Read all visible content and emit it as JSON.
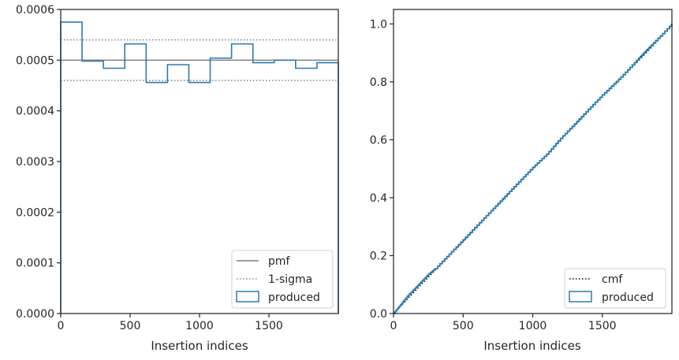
{
  "colors": {
    "produced": "#2b7bb0",
    "pmf": "#808080",
    "sigma": "#808080",
    "cmf": "#000000",
    "axes": "#262626"
  },
  "chart_data": [
    {
      "type": "histogram",
      "xlabel": "Insertion indices",
      "ylabel": "",
      "xlim": [
        0,
        2000
      ],
      "ylim": [
        0,
        0.0006
      ],
      "xticks": [
        0,
        500,
        1000,
        1500
      ],
      "xtick_labels": [
        "0",
        "500",
        "1000",
        "1500"
      ],
      "yticks": [
        0,
        0.0001,
        0.0002,
        0.0003,
        0.0004,
        0.0005,
        0.0006
      ],
      "ytick_labels": [
        "0.0000",
        "0.0001",
        "0.0002",
        "0.0003",
        "0.0004",
        "0.0005",
        "0.0006"
      ],
      "bin_edges": [
        0,
        153.8,
        307.7,
        461.5,
        615.4,
        769.2,
        923.1,
        1076.9,
        1230.8,
        1384.6,
        1538.5,
        1692.3,
        1846.2,
        2000
      ],
      "series": [
        {
          "name": "produced",
          "style": "step",
          "values": [
            0.000575,
            0.000498,
            0.000484,
            0.000532,
            0.000456,
            0.000491,
            0.000456,
            0.000504,
            0.000532,
            0.000495,
            0.0005,
            0.000484,
            0.000495
          ]
        }
      ],
      "hlines": [
        {
          "name": "pmf",
          "y": 0.0005,
          "style": "solid"
        },
        {
          "name": "1-sigma",
          "y": 0.00054,
          "style": "dotted"
        },
        {
          "name": "1-sigma",
          "y": 0.00046,
          "style": "dotted"
        }
      ],
      "legend": {
        "position": "lower-right",
        "entries": [
          "pmf",
          "1-sigma",
          "produced"
        ]
      }
    },
    {
      "type": "line",
      "xlabel": "Insertion indices",
      "ylabel": "",
      "xlim": [
        0,
        2000
      ],
      "ylim": [
        0,
        1.05
      ],
      "xticks": [
        0,
        500,
        1000,
        1500
      ],
      "xtick_labels": [
        "0",
        "500",
        "1000",
        "1500"
      ],
      "yticks": [
        0,
        0.2,
        0.4,
        0.6,
        0.8,
        1.0
      ],
      "ytick_labels": [
        "0.0",
        "0.2",
        "0.4",
        "0.6",
        "0.8",
        "1.0"
      ],
      "series": [
        {
          "name": "cmf",
          "style": "dotted",
          "x": [
            0,
            2000
          ],
          "y": [
            0,
            1.0
          ]
        },
        {
          "name": "produced",
          "style": "step",
          "x": [
            0,
            50,
            100,
            150,
            200,
            250,
            300,
            400,
            500,
            600,
            700,
            800,
            900,
            1000,
            1100,
            1200,
            1300,
            1400,
            1500,
            1600,
            1700,
            1800,
            1900,
            2000
          ],
          "y": [
            0,
            0.03,
            0.06,
            0.085,
            0.11,
            0.135,
            0.155,
            0.205,
            0.255,
            0.305,
            0.355,
            0.405,
            0.455,
            0.505,
            0.55,
            0.605,
            0.655,
            0.705,
            0.755,
            0.8,
            0.85,
            0.9,
            0.95,
            1.0
          ]
        }
      ],
      "legend": {
        "position": "lower-right",
        "entries": [
          "cmf",
          "produced"
        ]
      }
    }
  ]
}
